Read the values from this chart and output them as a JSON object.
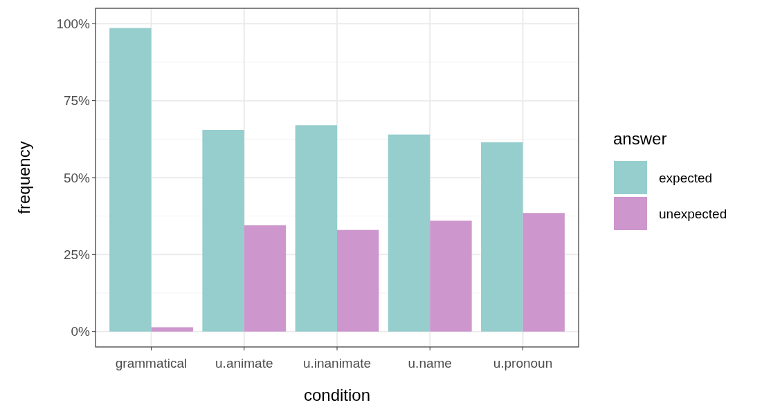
{
  "chart_data": {
    "type": "bar",
    "xlabel": "condition",
    "ylabel": "frequency",
    "legend_title": "answer",
    "categories": [
      "grammatical",
      "u.animate",
      "u.inanimate",
      "u.name",
      "u.pronoun"
    ],
    "series": [
      {
        "name": "expected",
        "color": "#96cdcd",
        "values": [
          98.6,
          65.5,
          67,
          64,
          61.5
        ]
      },
      {
        "name": "unexpected",
        "color": "#cd96cd",
        "values": [
          1.4,
          34.5,
          33,
          36,
          38.5
        ]
      }
    ],
    "ylim": [
      -5,
      105
    ],
    "yticks": [
      {
        "value": 0,
        "label": "0%"
      },
      {
        "value": 25,
        "label": "25%"
      },
      {
        "value": 50,
        "label": "50%"
      },
      {
        "value": 75,
        "label": "75%"
      },
      {
        "value": 100,
        "label": "100%"
      }
    ],
    "grid": true,
    "legend": "right"
  }
}
